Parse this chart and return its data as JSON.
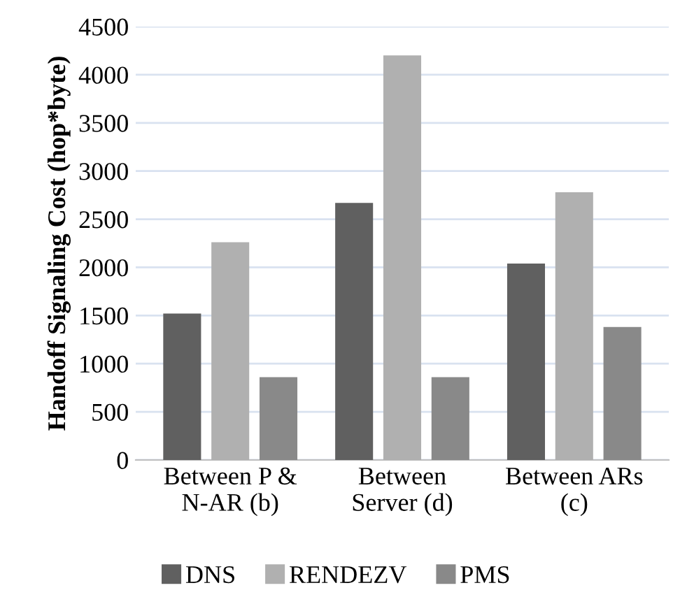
{
  "chart_data": {
    "type": "bar",
    "ylabel": "Handoff Signaling Cost (hop*byte)",
    "categories": [
      "Between P &\nN-AR (b)",
      "Between\nServer (d)",
      "Between ARs\n(c)"
    ],
    "series": [
      {
        "name": "DNS",
        "color": "#606060",
        "values": [
          1520,
          2670,
          2040
        ]
      },
      {
        "name": "RENDEZV",
        "color": "#b0b0b0",
        "values": [
          2260,
          4200,
          2780
        ]
      },
      {
        "name": "PMS",
        "color": "#898989",
        "values": [
          860,
          860,
          1380
        ]
      }
    ],
    "ylim": [
      0,
      4500
    ],
    "yticks": [
      0,
      500,
      1000,
      1500,
      2000,
      2500,
      3000,
      3500,
      4000,
      4500
    ],
    "grid": "y",
    "legend": "bottom"
  }
}
